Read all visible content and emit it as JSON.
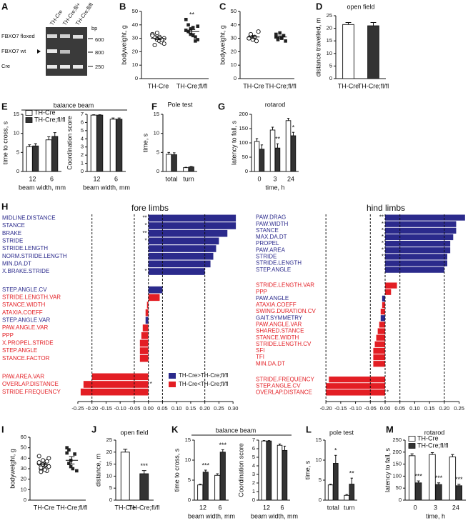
{
  "gel": {
    "panel": "A",
    "lanes": [
      "TH-Cre",
      "TH-Cre;fl/+",
      "TH-Cre;fl/fl"
    ],
    "bands": [
      "FBXO7 floxed",
      "FBXO7 wt",
      "Cre"
    ],
    "unit": "bp",
    "sizes": [
      "600",
      "800",
      "250"
    ]
  },
  "chart_data": [
    {
      "panel": "B",
      "type": "dot",
      "ylabel": "bodyweight, g",
      "categories": [
        "TH-Cre",
        "TH-Cre;fl/fl"
      ],
      "points": [
        [
          33,
          31,
          29,
          28,
          27,
          30,
          32,
          25,
          34,
          31,
          29,
          26
        ],
        [
          36,
          40,
          33,
          38,
          31,
          29,
          44,
          35,
          37,
          32,
          28,
          39
        ]
      ],
      "means": [
        30,
        35
      ],
      "errors": [
        1,
        1.5
      ],
      "significance": [
        null,
        "**"
      ],
      "markers": [
        "open-circle",
        "filled-square"
      ],
      "ylim": [
        0,
        50
      ],
      "yticks": [
        0,
        10,
        20,
        30,
        40,
        50
      ]
    },
    {
      "panel": "C",
      "type": "dot",
      "ylabel": "bodyweight, g",
      "categories": [
        "TH-Cre",
        "TH-Cre;fl/fl"
      ],
      "points": [
        [
          30,
          32,
          29,
          31,
          28,
          35,
          30,
          33
        ],
        [
          31,
          29,
          34,
          30,
          32,
          28,
          33,
          30
        ]
      ],
      "means": [
        31,
        31
      ],
      "errors": [
        1,
        0.8
      ],
      "markers": [
        "open-circle",
        "filled-square"
      ],
      "ylim": [
        0,
        50
      ],
      "yticks": [
        0,
        10,
        20,
        30,
        40,
        50
      ]
    },
    {
      "panel": "D",
      "type": "bar",
      "title": "open field",
      "ylabel": "distance travelled, m",
      "categories": [
        "TH-Cre",
        "TH-Cre;fl/fl"
      ],
      "values": [
        21.5,
        21
      ],
      "errors": [
        0.8,
        1.3
      ],
      "colors": [
        "#ffffff",
        "#333333"
      ],
      "ylim": [
        0,
        25
      ],
      "yticks": [
        0,
        5,
        10,
        15,
        20,
        25
      ]
    },
    {
      "panel": "E",
      "type": "bar",
      "title": "balance beam",
      "ylabel": "time to cross, s",
      "xlabel": "beam width, mm",
      "categories": [
        "12",
        "6"
      ],
      "series": [
        {
          "name": "TH-Cre",
          "color": "#ffffff",
          "values": [
            6.5,
            8.3
          ],
          "errors": [
            0.5,
            0.8
          ]
        },
        {
          "name": "TH-Cre;fl/fl",
          "color": "#333333",
          "values": [
            6.7,
            9.2
          ],
          "errors": [
            0.6,
            1
          ]
        }
      ],
      "ylim": [
        0,
        15
      ],
      "yticks": [
        0,
        5,
        10,
        15
      ]
    },
    {
      "type": "bar",
      "ylabel": "Coordination score",
      "xlabel": "beam width, mm",
      "categories": [
        "12",
        "6"
      ],
      "series": [
        {
          "color": "#ffffff",
          "values": [
            6.9,
            6.4
          ],
          "errors": [
            0.05,
            0.15
          ]
        },
        {
          "color": "#333333",
          "values": [
            6.9,
            6.4
          ],
          "errors": [
            0.05,
            0.15
          ]
        }
      ],
      "ylim": [
        0,
        7
      ],
      "yticks": [
        0,
        1,
        2,
        3,
        4,
        5,
        6,
        7
      ]
    },
    {
      "panel": "F",
      "type": "bar",
      "title": "Pole test",
      "ylabel": "time, s",
      "categories": [
        "total",
        "turn"
      ],
      "series": [
        {
          "color": "#ffffff",
          "values": [
            4.5,
            1
          ],
          "errors": [
            0.5,
            0.1
          ]
        },
        {
          "color": "#333333",
          "values": [
            4.4,
            1.2
          ],
          "errors": [
            0.5,
            0.1
          ]
        }
      ],
      "ylim": [
        0,
        15
      ],
      "yticks": [
        0,
        5,
        10,
        15
      ]
    },
    {
      "panel": "G",
      "type": "bar",
      "title": "rotarod",
      "ylabel": "latency to fall, s",
      "xlabel": "time, h",
      "categories": [
        "0",
        "3",
        "24"
      ],
      "series": [
        {
          "color": "#ffffff",
          "values": [
            105,
            145,
            178
          ],
          "errors": [
            10,
            10,
            8
          ]
        },
        {
          "color": "#333333",
          "values": [
            78,
            82,
            125
          ],
          "errors": [
            15,
            15,
            12
          ],
          "significance": [
            null,
            "**",
            "*"
          ]
        }
      ],
      "ylim": [
        0,
        200
      ],
      "yticks": [
        0,
        50,
        100,
        150,
        200
      ]
    },
    {
      "panel": "H",
      "type": "hbar",
      "title": "fore limbs",
      "groups": [
        {
          "categories": [
            "MIDLINE.DISTANCE",
            "STANCE",
            "BRAKE",
            "STRIDE",
            "STRIDE.LENGTH",
            "NORM.STRIDE.LENGTH",
            "MIN.DA.DT",
            "X.BRAKE.STRIDE"
          ],
          "values": [
            0.31,
            0.31,
            0.28,
            0.25,
            0.24,
            0.23,
            0.22,
            0.2
          ],
          "colors": [
            "#2b2a8c",
            "#2b2a8c",
            "#2b2a8c",
            "#2b2a8c",
            "#2b2a8c",
            "#2b2a8c",
            "#2b2a8c",
            "#2b2a8c"
          ],
          "significance": [
            "**",
            "*",
            "**",
            "*",
            null,
            null,
            null,
            "*"
          ]
        },
        {
          "categories": [
            "STEP.ANGLE.CV",
            "STRIDE.LENGTH.VAR",
            "STANCE.WIDTH",
            "ATAXIA.COEFF",
            "STEP.ANGLE.VAR",
            "PAW.ANGLE.VAR",
            "PPP",
            "X.PROPEL.STRIDE",
            "STEP.ANGLE",
            "STANCE.FACTOR"
          ],
          "values": [
            0.05,
            0.04,
            -0.005,
            -0.01,
            -0.01,
            -0.02,
            -0.025,
            -0.03,
            -0.03,
            -0.03
          ],
          "colors": [
            "#2b2a8c",
            "#e31e24",
            "#e31e24",
            "#e31e24",
            "#2b2a8c",
            "#e31e24",
            "#e31e24",
            "#e31e24",
            "#e31e24",
            "#e31e24"
          ]
        },
        {
          "categories": [
            "PAW.AREA.VAR",
            "OVERLAP.DISTANCE",
            "STRIDE.FREQUENCY"
          ],
          "values": [
            -0.2,
            -0.23,
            -0.24
          ],
          "colors": [
            "#e31e24",
            "#e31e24",
            "#e31e24"
          ],
          "significance": [
            null,
            "*",
            null
          ]
        }
      ],
      "legend": [
        {
          "name": "TH-Cre>TH-Cre;fl/fl",
          "color": "#2b2a8c"
        },
        {
          "name": "TH-Cre<TH-Cre;fl/fl",
          "color": "#e31e24"
        }
      ],
      "reference_lines": [
        -0.2,
        -0.05,
        0,
        0.05,
        0.2
      ],
      "xlim": [
        -0.26,
        0.33
      ],
      "xticks": [
        -0.25,
        {
          "value": -0.2,
          "label": "-0.20"
        },
        -0.15,
        {
          "value": -0.1,
          "label": "-0.10"
        },
        -0.05,
        {
          "value": 0,
          "label": "0.00"
        },
        0.05,
        {
          "value": 0.1,
          "label": "0.10"
        },
        0.15,
        {
          "value": 0.2,
          "label": "0.20"
        },
        0.25,
        {
          "value": 0.3,
          "label": "0.30"
        }
      ]
    },
    {
      "type": "hbar",
      "title": "hind limbs",
      "groups": [
        {
          "categories": [
            "PAW.DRAG",
            "PAW.WIDTH",
            "STANCE",
            "MAX.DA.DT",
            "PROPEL",
            "PAW.AREA",
            "STRIDE",
            "STRIDE.LENGTH",
            "STEP.ANGLE"
          ],
          "values": [
            0.27,
            0.24,
            0.24,
            0.23,
            0.22,
            0.22,
            0.21,
            0.21,
            0.2
          ],
          "colors": [
            "#2b2a8c",
            "#2b2a8c",
            "#2b2a8c",
            "#2b2a8c",
            "#2b2a8c",
            "#2b2a8c",
            "#2b2a8c",
            "#2b2a8c",
            "#2b2a8c"
          ],
          "significance": [
            "**",
            "*",
            "*",
            "*",
            "*",
            "*",
            "*",
            null,
            null
          ]
        },
        {
          "categories": [
            "STRIDE.LENGTH.VAR",
            "PPP",
            "PAW.ANGLE",
            "ATAXIA.COEFF",
            "SWING.DURATION.CV",
            "GAIT.SYMMETRY",
            "PAW.ANGLE.VAR",
            "SHARED.STANCE",
            "STANCE.WIDTH",
            "STRIDE.LENGTH.CV",
            "SFI",
            "TFI",
            "MIN.DA.DT"
          ],
          "values": [
            0.04,
            0.02,
            -0.01,
            -0.01,
            -0.015,
            -0.015,
            -0.02,
            -0.025,
            -0.03,
            -0.035,
            -0.04,
            -0.04,
            -0.04
          ],
          "colors": [
            "#e31e24",
            "#e31e24",
            "#2b2a8c",
            "#e31e24",
            "#e31e24",
            "#2b2a8c",
            "#e31e24",
            "#e31e24",
            "#e31e24",
            "#e31e24",
            "#e31e24",
            "#e31e24",
            "#e31e24"
          ]
        },
        {
          "categories": [
            "STRIDE.FREQUENCY",
            "STEP.ANGLE.CV",
            "OVERLAP.DISTANCE"
          ],
          "values": [
            -0.19,
            -0.2,
            -0.2
          ],
          "colors": [
            "#e31e24",
            "#e31e24",
            "#e31e24"
          ],
          "significance": [
            null,
            null,
            "*"
          ]
        }
      ],
      "reference_lines": [
        -0.2,
        -0.05,
        0,
        0.05,
        0.2
      ],
      "xlim": [
        -0.21,
        0.28
      ],
      "xticks": [
        {
          "value": -0.2,
          "label": "-0.20"
        },
        -0.15,
        {
          "value": -0.1,
          "label": "-0.10"
        },
        -0.05,
        {
          "value": 0,
          "label": "0.00"
        },
        0.05,
        {
          "value": 0.1,
          "label": "0.10"
        },
        0.15,
        {
          "value": 0.2,
          "label": "0.20"
        },
        0.25
      ]
    },
    {
      "panel": "I",
      "type": "dot",
      "ylabel": "bodyweight, g",
      "categories": [
        "TH-Cre",
        "TH-Cre;fl/fl"
      ],
      "points": [
        [
          35,
          30,
          38,
          33,
          28,
          40,
          36,
          31,
          34,
          29,
          37,
          32,
          42,
          27
        ],
        [
          45,
          48,
          32,
          30,
          44,
          28,
          50,
          35,
          38
        ]
      ],
      "means": [
        34,
        38
      ],
      "errors": [
        1.5,
        3.5
      ],
      "markers": [
        "open-circle",
        "filled-square"
      ],
      "ylim": [
        0,
        60
      ],
      "yticks": [
        0,
        10,
        20,
        30,
        40,
        50,
        60
      ]
    },
    {
      "panel": "J",
      "type": "bar",
      "title": "open field",
      "ylabel": "distance, m",
      "categories": [
        "TH-Cre",
        "TH-Cre;fl/fl"
      ],
      "values": [
        20,
        11
      ],
      "errors": [
        1.2,
        1.3
      ],
      "colors": [
        "#ffffff",
        "#333333"
      ],
      "significance": [
        null,
        "***"
      ],
      "ylim": [
        0,
        25
      ],
      "yticks": [
        0,
        5,
        10,
        15,
        20,
        25
      ]
    },
    {
      "panel": "K",
      "type": "bar",
      "title": "balance beam",
      "ylabel": "time to cross, s",
      "xlabel": "beam width, mm",
      "categories": [
        "12",
        "6"
      ],
      "series": [
        {
          "color": "#ffffff",
          "values": [
            3.8,
            6.2
          ],
          "errors": [
            0.2,
            0.4
          ]
        },
        {
          "color": "#333333",
          "values": [
            7,
            12
          ],
          "errors": [
            0.5,
            0.6
          ],
          "significance": [
            "***",
            "***"
          ]
        }
      ],
      "ylim": [
        0,
        15
      ],
      "yticks": [
        0,
        5,
        10,
        15
      ]
    },
    {
      "type": "bar",
      "ylabel": "Coordination score",
      "xlabel": "beam width, mm",
      "categories": [
        "12",
        "6"
      ],
      "series": [
        {
          "color": "#ffffff",
          "values": [
            6.9,
            6.4
          ],
          "errors": [
            0.05,
            0.15
          ]
        },
        {
          "color": "#333333",
          "values": [
            6.9,
            5.8
          ],
          "errors": [
            0.05,
            0.5
          ]
        }
      ],
      "ylim": [
        0,
        7
      ],
      "yticks": [
        0,
        1,
        2,
        3,
        4,
        5,
        6,
        7
      ]
    },
    {
      "panel": "L",
      "type": "bar",
      "title": "pole test",
      "ylabel": "time, s",
      "categories": [
        "total",
        "turn"
      ],
      "series": [
        {
          "color": "#ffffff",
          "values": [
            3.8,
            1.2
          ],
          "errors": [
            0.2,
            0.2
          ]
        },
        {
          "color": "#333333",
          "values": [
            9.2,
            4
          ],
          "errors": [
            2,
            1.5
          ],
          "significance": [
            "*",
            "**"
          ]
        }
      ],
      "ylim": [
        0,
        15
      ],
      "yticks": [
        0,
        5,
        10,
        15
      ]
    },
    {
      "panel": "M",
      "type": "bar",
      "title": "rotarod",
      "ylabel": "latency to fall, s",
      "xlabel": "time, h",
      "categories": [
        "0",
        "3",
        "24"
      ],
      "series": [
        {
          "name": "TH-Cre",
          "color": "#ffffff",
          "values": [
            185,
            190,
            180
          ],
          "errors": [
            8,
            8,
            10
          ]
        },
        {
          "name": "TH-Cre;fl/fl",
          "color": "#333333",
          "values": [
            72,
            65,
            60
          ],
          "errors": [
            8,
            7,
            6
          ],
          "significance": [
            "***",
            "***",
            "***"
          ]
        }
      ],
      "ylim": [
        0,
        250
      ],
      "yticks": [
        0,
        50,
        100,
        150,
        200,
        250
      ]
    }
  ]
}
